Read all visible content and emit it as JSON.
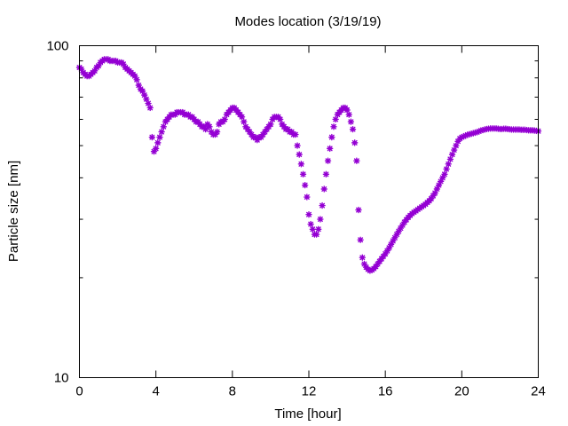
{
  "chart_data": {
    "type": "scatter",
    "title": "Modes location (3/19/19)",
    "xlabel": "Time [hour]",
    "ylabel": "Particle size [nm]",
    "xlim": [
      0,
      24
    ],
    "ylim": [
      10,
      100
    ],
    "yscale": "log",
    "grid": false,
    "x_ticks": [
      0,
      4,
      8,
      12,
      16,
      20,
      24
    ],
    "x_tick_labels": [
      "0",
      "4",
      "8",
      "12",
      "16",
      "20",
      "24"
    ],
    "y_ticks": [
      10,
      100
    ],
    "y_tick_labels": [
      "10",
      "100"
    ],
    "marker": "asterisk",
    "color": "#9400d3",
    "series": [
      {
        "points": [
          [
            0.0,
            86
          ],
          [
            0.1,
            85
          ],
          [
            0.2,
            83
          ],
          [
            0.3,
            82
          ],
          [
            0.4,
            81
          ],
          [
            0.5,
            81
          ],
          [
            0.6,
            82
          ],
          [
            0.7,
            83
          ],
          [
            0.8,
            84
          ],
          [
            0.9,
            86
          ],
          [
            1.0,
            87
          ],
          [
            1.1,
            89
          ],
          [
            1.2,
            90
          ],
          [
            1.3,
            91
          ],
          [
            1.4,
            91
          ],
          [
            1.5,
            91
          ],
          [
            1.6,
            90
          ],
          [
            1.7,
            90
          ],
          [
            1.8,
            90
          ],
          [
            1.9,
            90
          ],
          [
            2.0,
            89
          ],
          [
            2.1,
            89
          ],
          [
            2.2,
            89
          ],
          [
            2.3,
            88
          ],
          [
            2.4,
            86
          ],
          [
            2.5,
            85
          ],
          [
            2.6,
            84
          ],
          [
            2.7,
            83
          ],
          [
            2.8,
            82
          ],
          [
            2.9,
            81
          ],
          [
            3.0,
            79
          ],
          [
            3.1,
            76
          ],
          [
            3.2,
            74
          ],
          [
            3.3,
            73
          ],
          [
            3.4,
            71
          ],
          [
            3.5,
            69
          ],
          [
            3.6,
            67
          ],
          [
            3.7,
            65
          ],
          [
            3.8,
            53
          ],
          [
            3.9,
            48
          ],
          [
            4.0,
            49
          ],
          [
            4.1,
            51
          ],
          [
            4.2,
            53
          ],
          [
            4.3,
            55
          ],
          [
            4.4,
            57
          ],
          [
            4.5,
            59
          ],
          [
            4.6,
            60
          ],
          [
            4.7,
            61
          ],
          [
            4.8,
            62
          ],
          [
            4.9,
            62
          ],
          [
            5.0,
            62
          ],
          [
            5.1,
            63
          ],
          [
            5.2,
            63
          ],
          [
            5.3,
            63
          ],
          [
            5.4,
            63
          ],
          [
            5.5,
            62
          ],
          [
            5.6,
            62
          ],
          [
            5.7,
            62
          ],
          [
            5.8,
            61
          ],
          [
            5.9,
            61
          ],
          [
            6.0,
            60
          ],
          [
            6.1,
            59
          ],
          [
            6.2,
            59
          ],
          [
            6.3,
            58
          ],
          [
            6.4,
            57
          ],
          [
            6.5,
            57
          ],
          [
            6.6,
            56
          ],
          [
            6.7,
            58
          ],
          [
            6.8,
            57
          ],
          [
            6.9,
            55
          ],
          [
            7.0,
            54
          ],
          [
            7.1,
            54
          ],
          [
            7.2,
            55
          ],
          [
            7.3,
            58
          ],
          [
            7.4,
            59
          ],
          [
            7.5,
            59
          ],
          [
            7.6,
            60
          ],
          [
            7.7,
            62
          ],
          [
            7.8,
            63
          ],
          [
            7.9,
            64
          ],
          [
            8.0,
            65
          ],
          [
            8.1,
            65
          ],
          [
            8.2,
            64
          ],
          [
            8.3,
            63
          ],
          [
            8.4,
            62
          ],
          [
            8.5,
            61
          ],
          [
            8.6,
            59
          ],
          [
            8.7,
            57
          ],
          [
            8.8,
            56
          ],
          [
            8.9,
            55
          ],
          [
            9.0,
            54
          ],
          [
            9.1,
            53
          ],
          [
            9.2,
            53
          ],
          [
            9.3,
            52
          ],
          [
            9.4,
            53
          ],
          [
            9.5,
            53
          ],
          [
            9.6,
            54
          ],
          [
            9.7,
            55
          ],
          [
            9.8,
            56
          ],
          [
            9.9,
            57
          ],
          [
            10.0,
            58
          ],
          [
            10.1,
            60
          ],
          [
            10.2,
            61
          ],
          [
            10.3,
            61
          ],
          [
            10.4,
            61
          ],
          [
            10.5,
            60
          ],
          [
            10.6,
            58
          ],
          [
            10.7,
            57
          ],
          [
            10.8,
            56
          ],
          [
            10.9,
            56
          ],
          [
            11.0,
            55
          ],
          [
            11.1,
            55
          ],
          [
            11.2,
            54
          ],
          [
            11.3,
            54
          ],
          [
            11.4,
            50
          ],
          [
            11.5,
            47
          ],
          [
            11.6,
            44
          ],
          [
            11.7,
            41
          ],
          [
            11.8,
            38
          ],
          [
            11.9,
            35
          ],
          [
            12.0,
            31
          ],
          [
            12.1,
            29
          ],
          [
            12.2,
            28
          ],
          [
            12.3,
            27
          ],
          [
            12.4,
            27
          ],
          [
            12.5,
            28
          ],
          [
            12.6,
            30
          ],
          [
            12.7,
            33
          ],
          [
            12.8,
            37
          ],
          [
            12.9,
            41
          ],
          [
            13.0,
            45
          ],
          [
            13.1,
            49
          ],
          [
            13.2,
            53
          ],
          [
            13.3,
            57
          ],
          [
            13.4,
            60
          ],
          [
            13.5,
            62
          ],
          [
            13.6,
            63
          ],
          [
            13.7,
            64
          ],
          [
            13.8,
            65
          ],
          [
            13.9,
            65
          ],
          [
            14.0,
            64
          ],
          [
            14.1,
            62
          ],
          [
            14.2,
            59
          ],
          [
            14.3,
            56
          ],
          [
            14.4,
            51
          ],
          [
            14.5,
            45
          ],
          [
            14.6,
            32
          ],
          [
            14.7,
            26
          ],
          [
            14.8,
            23
          ],
          [
            14.9,
            22
          ],
          [
            15.0,
            21.5
          ],
          [
            15.1,
            21.2
          ],
          [
            15.2,
            21.0
          ],
          [
            15.3,
            21.1
          ],
          [
            15.4,
            21.3
          ],
          [
            15.5,
            21.6
          ],
          [
            15.6,
            22
          ],
          [
            15.7,
            22.4
          ],
          [
            15.8,
            22.8
          ],
          [
            15.9,
            23.2
          ],
          [
            16.0,
            23.6
          ],
          [
            16.1,
            24.1
          ],
          [
            16.2,
            24.6
          ],
          [
            16.3,
            25.2
          ],
          [
            16.4,
            25.8
          ],
          [
            16.5,
            26.4
          ],
          [
            16.6,
            27
          ],
          [
            16.7,
            27.6
          ],
          [
            16.8,
            28.2
          ],
          [
            16.9,
            28.8
          ],
          [
            17.0,
            29.4
          ],
          [
            17.1,
            29.9
          ],
          [
            17.2,
            30.4
          ],
          [
            17.3,
            30.8
          ],
          [
            17.4,
            31.2
          ],
          [
            17.5,
            31.5
          ],
          [
            17.6,
            31.8
          ],
          [
            17.7,
            32.1
          ],
          [
            17.8,
            32.4
          ],
          [
            17.9,
            32.7
          ],
          [
            18.0,
            33
          ],
          [
            18.1,
            33.3
          ],
          [
            18.2,
            33.7
          ],
          [
            18.3,
            34.1
          ],
          [
            18.4,
            34.6
          ],
          [
            18.5,
            35.3
          ],
          [
            18.6,
            36
          ],
          [
            18.7,
            37
          ],
          [
            18.8,
            38
          ],
          [
            18.9,
            39
          ],
          [
            19.0,
            40
          ],
          [
            19.1,
            41
          ],
          [
            19.2,
            42.5
          ],
          [
            19.3,
            44
          ],
          [
            19.4,
            45.5
          ],
          [
            19.5,
            47
          ],
          [
            19.6,
            48.5
          ],
          [
            19.7,
            50
          ],
          [
            19.8,
            51.5
          ],
          [
            19.9,
            52.5
          ],
          [
            20.0,
            53
          ],
          [
            20.1,
            53.3
          ],
          [
            20.2,
            53.6
          ],
          [
            20.3,
            53.9
          ],
          [
            20.4,
            54.1
          ],
          [
            20.5,
            54.3
          ],
          [
            20.6,
            54.5
          ],
          [
            20.7,
            54.7
          ],
          [
            20.8,
            54.9
          ],
          [
            20.9,
            55.2
          ],
          [
            21.0,
            55.5
          ],
          [
            21.1,
            55.7
          ],
          [
            21.2,
            55.9
          ],
          [
            21.3,
            56.1
          ],
          [
            21.4,
            56.2
          ],
          [
            21.5,
            56.3
          ],
          [
            21.6,
            56.3
          ],
          [
            21.7,
            56.3
          ],
          [
            21.8,
            56.3
          ],
          [
            21.9,
            56.2
          ],
          [
            22.0,
            56.1
          ],
          [
            22.1,
            56.1
          ],
          [
            22.2,
            56.2
          ],
          [
            22.3,
            56.2
          ],
          [
            22.4,
            56.1
          ],
          [
            22.5,
            56.0
          ],
          [
            22.6,
            55.9
          ],
          [
            22.7,
            55.9
          ],
          [
            22.8,
            55.9
          ],
          [
            22.9,
            55.9
          ],
          [
            23.0,
            55.9
          ],
          [
            23.1,
            55.8
          ],
          [
            23.2,
            55.8
          ],
          [
            23.3,
            55.8
          ],
          [
            23.4,
            55.7
          ],
          [
            23.5,
            55.6
          ],
          [
            23.6,
            55.6
          ],
          [
            23.7,
            55.6
          ],
          [
            23.8,
            55.5
          ],
          [
            23.9,
            55.4
          ],
          [
            24.0,
            55.3
          ]
        ]
      }
    ]
  }
}
